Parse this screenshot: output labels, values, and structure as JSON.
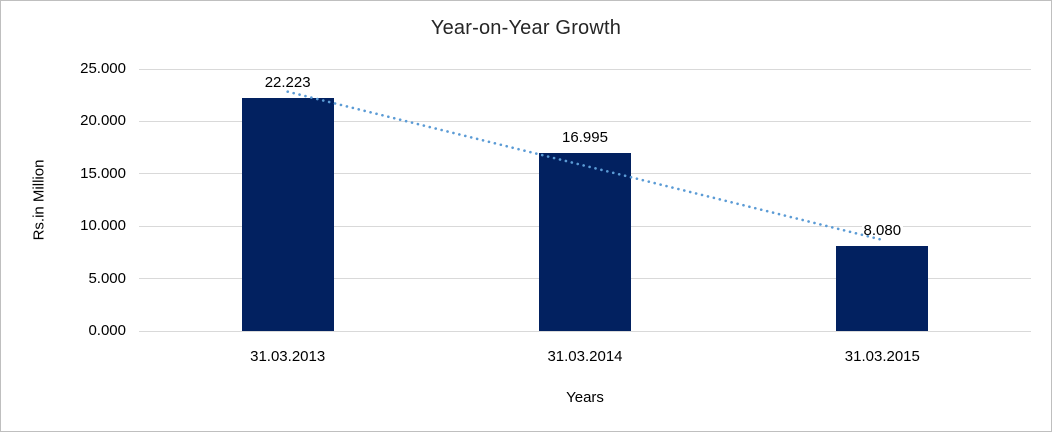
{
  "chart_data": {
    "type": "bar",
    "title": "Year-on-Year Growth",
    "xlabel": "Years",
    "ylabel": "Rs.in Million",
    "categories": [
      "31.03.2013",
      "31.03.2014",
      "31.03.2015"
    ],
    "values": [
      22.223,
      16.995,
      8.08
    ],
    "data_labels": [
      "22.223",
      "16.995",
      "8.080"
    ],
    "ylim": [
      0,
      25
    ],
    "ytick_step": 5,
    "ytick_labels": [
      "0.000",
      "5.000",
      "10.000",
      "15.000",
      "20.000",
      "25.000"
    ],
    "grid": true,
    "legend": "none",
    "trendline": {
      "type": "linear",
      "style": "dotted",
      "color": "#5B9BD5"
    },
    "colors": {
      "bar": "#022160",
      "gridline": "#D9D9D9",
      "frame_border": "#BFBFBF",
      "title_text": "#262626",
      "axis_text": "#000000"
    }
  }
}
